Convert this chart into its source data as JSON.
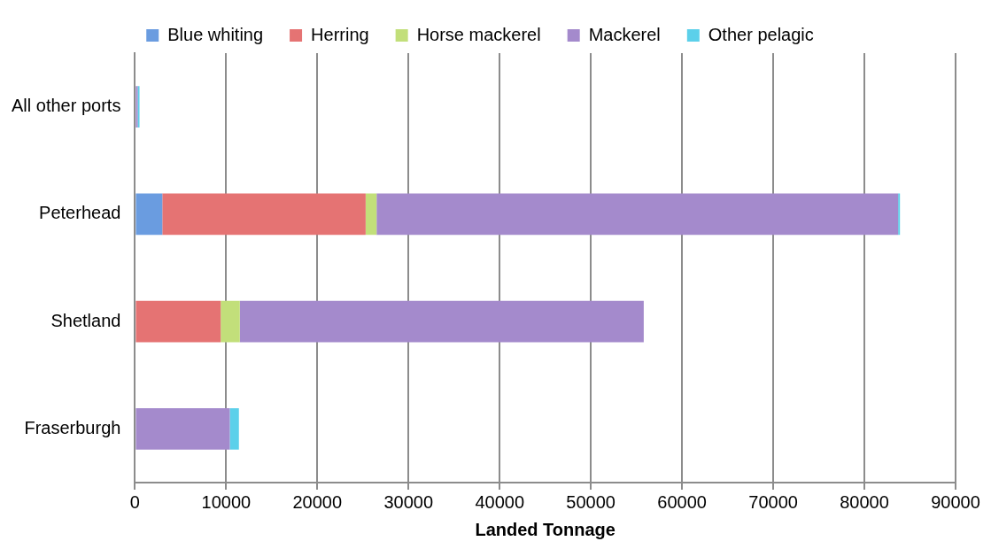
{
  "chart_data": {
    "type": "bar",
    "orientation": "horizontal",
    "stacked": true,
    "xlabel": "Landed Tonnage",
    "categories": [
      "All other ports",
      "Peterhead",
      "Shetland",
      "Fraserburgh"
    ],
    "series": [
      {
        "name": "Blue whiting",
        "color": "#6a9ce0",
        "values": [
          0,
          3000,
          0,
          0
        ]
      },
      {
        "name": "Herring",
        "color": "#e57373",
        "values": [
          0,
          22300,
          9400,
          0
        ]
      },
      {
        "name": "Horse mackerel",
        "color": "#c2df7a",
        "values": [
          0,
          1200,
          2100,
          0
        ]
      },
      {
        "name": "Mackerel",
        "color": "#a48acc",
        "values": [
          300,
          57200,
          44300,
          10400
        ]
      },
      {
        "name": "Other pelagic",
        "color": "#5cd0ea",
        "values": [
          200,
          200,
          0,
          1000
        ]
      }
    ],
    "xlim": [
      0,
      90000
    ],
    "xticks": [
      0,
      10000,
      20000,
      30000,
      40000,
      50000,
      60000,
      70000,
      80000,
      90000
    ],
    "grid": "x",
    "legend": "top"
  }
}
